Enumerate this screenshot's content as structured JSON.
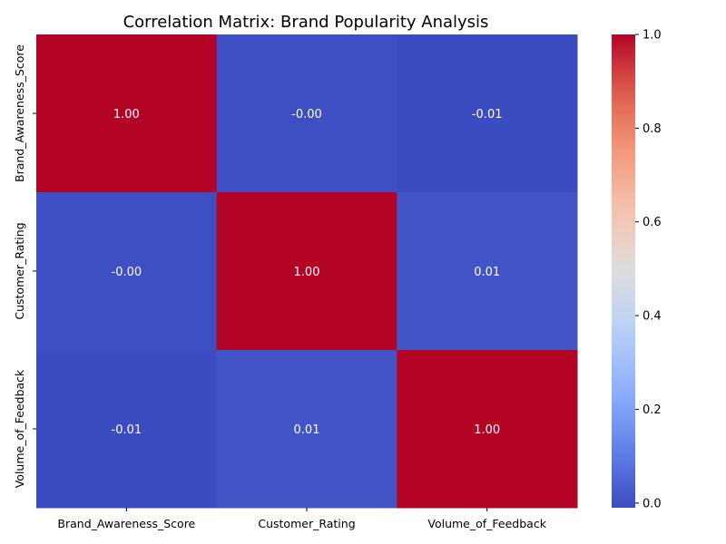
{
  "chart_data": {
    "type": "heatmap",
    "title": "Correlation Matrix: Brand Popularity Analysis",
    "x_labels": [
      "Brand_Awareness_Score",
      "Customer_Rating",
      "Volume_of_Feedback"
    ],
    "y_labels": [
      "Brand_Awareness_Score",
      "Customer_Rating",
      "Volume_of_Feedback"
    ],
    "values": [
      [
        1.0,
        -0.002,
        -0.01
      ],
      [
        -0.002,
        1.0,
        0.01
      ],
      [
        -0.01,
        0.01,
        1.0
      ]
    ],
    "annotations": [
      [
        "1.00",
        "-0.00",
        "-0.01"
      ],
      [
        "-0.00",
        "1.00",
        "0.01"
      ],
      [
        "-0.01",
        "0.01",
        "1.00"
      ]
    ],
    "colormap": "coolwarm",
    "vmin": -0.01,
    "vmax": 1.0,
    "colorbar": {
      "ticks": [
        0.0,
        0.2,
        0.4,
        0.6,
        0.8,
        1.0
      ],
      "tick_labels": [
        "0.0",
        "0.2",
        "0.4",
        "0.6",
        "0.8",
        "1.0"
      ]
    }
  }
}
